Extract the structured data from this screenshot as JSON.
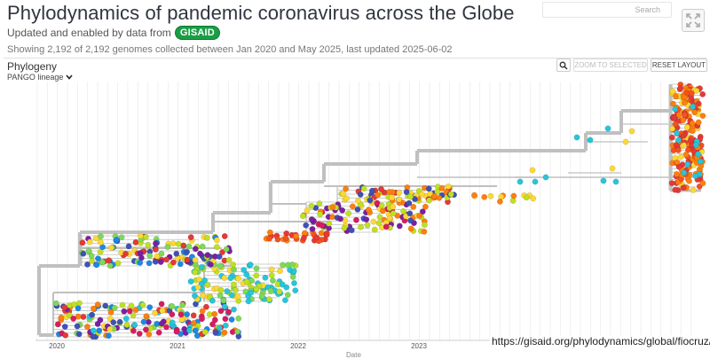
{
  "header": {
    "title": "Phylodynamics of pandemic coronavirus across the Globe",
    "subtitle_prefix": "Updated and enabled by data from",
    "gisaid_logo": "GISAID",
    "info": "Showing 2,192 of 2,192 genomes collected between Jan 2020 and May 2025, last updated 2025-06-02"
  },
  "search": {
    "placeholder": "Search"
  },
  "panel": {
    "title": "Phylogeny",
    "color_by": "PANGO lineage",
    "zoom_to_selected_label": "ZOOM TO SELECTED",
    "reset_layout_label": "RESET LAYOUT"
  },
  "chart_data": {
    "type": "scatter",
    "xlabel": "Date",
    "x_ticks": [
      "2020",
      "2021",
      "2022",
      "2023"
    ],
    "grid": true
  },
  "footer": {
    "url": "https://gisaid.org/phylodynamics/global/fiocruz/"
  },
  "colors": {
    "branch": "#c0c0c0",
    "palette": [
      "#e53935",
      "#ff7f0e",
      "#fdd835",
      "#c0e020",
      "#7ed957",
      "#26c6da",
      "#3f51b5",
      "#7b1fa2",
      "#d81b60",
      "#1e88e5",
      "#43a047",
      "#f4511e"
    ]
  }
}
